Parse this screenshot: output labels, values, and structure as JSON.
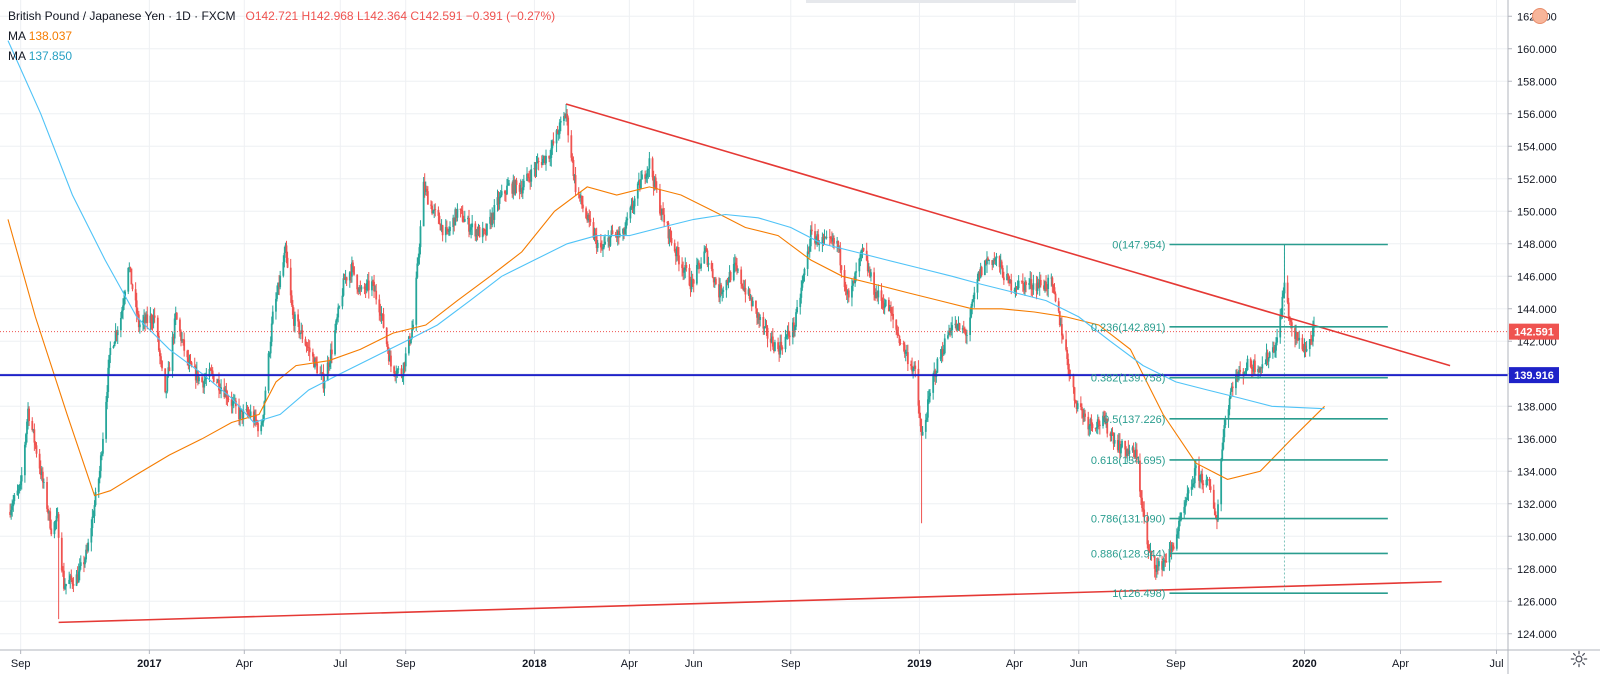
{
  "legend": {
    "symbol": "British Pound / Japanese Yen · 1D · FXCM",
    "open": "O142.721",
    "high": "H142.968",
    "low": "L142.364",
    "close": "C142.591",
    "change": "−0.391 (−0.27%)",
    "ma1_label": "MA",
    "ma1_value": "138.037",
    "ma2_label": "MA",
    "ma2_value": "137.850"
  },
  "colors": {
    "up": "#26a69a",
    "down": "#ef5350",
    "ma_orange": "#f57c00",
    "ma_blue": "#4fc3f7",
    "trend": "#e53935",
    "support": "#1e22c8",
    "fib": "#2a9d8f",
    "grid": "#eef0f3"
  },
  "chart_data": {
    "type": "candlestick",
    "title": "British Pound / Japanese Yen · 1D · FXCM",
    "ylim": [
      123,
      163
    ],
    "y_ticks": [
      "162.000",
      "160.000",
      "158.000",
      "156.000",
      "154.000",
      "152.000",
      "150.000",
      "148.000",
      "146.000",
      "144.000",
      "142.000",
      "140.000",
      "138.000",
      "136.000",
      "134.000",
      "132.000",
      "130.000",
      "128.000",
      "126.000",
      "124.000"
    ],
    "x_ticks": [
      "Sep",
      "2017",
      "Apr",
      "Jul",
      "Sep",
      "2018",
      "Apr",
      "Jun",
      "Sep",
      "2019",
      "Apr",
      "Jun",
      "Sep",
      "2020",
      "Apr",
      "Jul"
    ],
    "price_labels": [
      {
        "value": 142.591,
        "text": "142.591",
        "color": "#ef5350"
      },
      {
        "value": 139.916,
        "text": "139.916",
        "color": "#1e22c8"
      }
    ],
    "support_level": 139.916,
    "last_price": 142.591,
    "trendlines": [
      {
        "name": "descending-resistance",
        "from": {
          "date": "2018-01-31",
          "price": 156.6
        },
        "to": {
          "date": "2020-05-18",
          "price": 140.5
        }
      },
      {
        "name": "ascending-support",
        "from": {
          "date": "2016-10-07",
          "price": 124.7
        },
        "to": {
          "date": "2020-05-10",
          "price": 127.2
        }
      }
    ],
    "fibonacci": [
      {
        "label": "0(147.954)",
        "value": 147.954
      },
      {
        "label": "0.236(142.891)",
        "value": 142.891
      },
      {
        "label": "0.382(139.758)",
        "value": 139.758
      },
      {
        "label": "0.5(137.226)",
        "value": 137.226
      },
      {
        "label": "0.618(134.695)",
        "value": 134.695
      },
      {
        "label": "0.786(131.090)",
        "value": 131.09
      },
      {
        "label": "0.886(128.944)",
        "value": 128.944
      },
      {
        "label": "1(126.498)",
        "value": 126.498
      }
    ],
    "series": [
      {
        "name": "close (approx.)",
        "points": [
          [
            "2016-08-20",
            131.5
          ],
          [
            "2016-09-01",
            133.0
          ],
          [
            "2016-09-08",
            137.8
          ],
          [
            "2016-09-20",
            134.0
          ],
          [
            "2016-09-30",
            130.5
          ],
          [
            "2016-10-06",
            131.0
          ],
          [
            "2016-10-12",
            127.0
          ],
          [
            "2016-10-25",
            127.5
          ],
          [
            "2016-11-03",
            129.0
          ],
          [
            "2016-11-15",
            134.0
          ],
          [
            "2016-11-25",
            141.5
          ],
          [
            "2016-12-05",
            143.5
          ],
          [
            "2016-12-12",
            146.8
          ],
          [
            "2016-12-22",
            143.0
          ],
          [
            "2017-01-06",
            143.5
          ],
          [
            "2017-01-16",
            138.5
          ],
          [
            "2017-01-26",
            143.5
          ],
          [
            "2017-02-07",
            140.5
          ],
          [
            "2017-02-20",
            139.5
          ],
          [
            "2017-03-01",
            140.0
          ],
          [
            "2017-03-13",
            139.0
          ],
          [
            "2017-03-27",
            137.5
          ],
          [
            "2017-04-07",
            137.5
          ],
          [
            "2017-04-17",
            136.5
          ],
          [
            "2017-04-28",
            143.5
          ],
          [
            "2017-05-10",
            147.5
          ],
          [
            "2017-05-17",
            143.5
          ],
          [
            "2017-06-01",
            141.5
          ],
          [
            "2017-06-15",
            139.5
          ],
          [
            "2017-06-23",
            141.5
          ],
          [
            "2017-07-05",
            145.8
          ],
          [
            "2017-07-12",
            146.5
          ],
          [
            "2017-07-20",
            145.0
          ],
          [
            "2017-07-31",
            145.5
          ],
          [
            "2017-08-08",
            144.0
          ],
          [
            "2017-08-18",
            140.5
          ],
          [
            "2017-08-28",
            140.0
          ],
          [
            "2017-09-08",
            143.0
          ],
          [
            "2017-09-18",
            151.5
          ],
          [
            "2017-09-27",
            150.0
          ],
          [
            "2017-10-10",
            148.5
          ],
          [
            "2017-10-20",
            150.0
          ],
          [
            "2017-11-02",
            149.0
          ],
          [
            "2017-11-15",
            148.5
          ],
          [
            "2017-11-27",
            150.5
          ],
          [
            "2017-12-07",
            151.5
          ],
          [
            "2017-12-20",
            151.5
          ],
          [
            "2018-01-05",
            153.0
          ],
          [
            "2018-01-15",
            153.5
          ],
          [
            "2018-01-24",
            155.0
          ],
          [
            "2018-01-31",
            156.0
          ],
          [
            "2018-02-09",
            151.5
          ],
          [
            "2018-02-20",
            149.5
          ],
          [
            "2018-03-05",
            147.5
          ],
          [
            "2018-03-15",
            148.5
          ],
          [
            "2018-03-26",
            148.5
          ],
          [
            "2018-04-10",
            151.5
          ],
          [
            "2018-04-20",
            153.0
          ],
          [
            "2018-05-01",
            150.0
          ],
          [
            "2018-05-15",
            147.5
          ],
          [
            "2018-05-30",
            145.5
          ],
          [
            "2018-06-12",
            147.5
          ],
          [
            "2018-06-25",
            145.0
          ],
          [
            "2018-07-10",
            146.5
          ],
          [
            "2018-07-25",
            144.5
          ],
          [
            "2018-08-08",
            142.5
          ],
          [
            "2018-08-20",
            141.5
          ],
          [
            "2018-09-05",
            143.0
          ],
          [
            "2018-09-20",
            148.5
          ],
          [
            "2018-10-05",
            148.0
          ],
          [
            "2018-10-15",
            148.0
          ],
          [
            "2018-10-26",
            144.5
          ],
          [
            "2018-11-08",
            147.5
          ],
          [
            "2018-11-20",
            145.0
          ],
          [
            "2018-12-03",
            144.0
          ],
          [
            "2018-12-14",
            142.0
          ],
          [
            "2018-12-28",
            140.0
          ],
          [
            "2019-01-03",
            136.0
          ],
          [
            "2019-01-15",
            140.0
          ],
          [
            "2019-01-31",
            143.0
          ],
          [
            "2019-02-15",
            142.5
          ],
          [
            "2019-02-26",
            146.0
          ],
          [
            "2019-03-06",
            147.0
          ],
          [
            "2019-03-15",
            147.0
          ],
          [
            "2019-03-27",
            145.5
          ],
          [
            "2019-04-10",
            145.5
          ],
          [
            "2019-04-24",
            145.5
          ],
          [
            "2019-05-06",
            145.5
          ],
          [
            "2019-05-15",
            143.0
          ],
          [
            "2019-05-28",
            138.5
          ],
          [
            "2019-06-10",
            137.0
          ],
          [
            "2019-06-25",
            137.0
          ],
          [
            "2019-07-10",
            135.5
          ],
          [
            "2019-07-25",
            135.0
          ],
          [
            "2019-08-06",
            129.0
          ],
          [
            "2019-08-15",
            128.0
          ],
          [
            "2019-08-27",
            129.0
          ],
          [
            "2019-09-06",
            131.0
          ],
          [
            "2019-09-20",
            134.0
          ],
          [
            "2019-10-03",
            133.0
          ],
          [
            "2019-10-10",
            131.0
          ],
          [
            "2019-10-16",
            136.5
          ],
          [
            "2019-10-25",
            139.5
          ],
          [
            "2019-11-08",
            140.5
          ],
          [
            "2019-11-22",
            140.5
          ],
          [
            "2019-12-06",
            142.0
          ],
          [
            "2019-12-13",
            145.5
          ],
          [
            "2019-12-20",
            142.5
          ],
          [
            "2020-01-03",
            141.5
          ],
          [
            "2020-01-10",
            142.6
          ]
        ]
      },
      {
        "name": "MA",
        "value_label": "138.037",
        "points": [
          [
            "2016-08-20",
            149.5
          ],
          [
            "2016-09-15",
            143.5
          ],
          [
            "2016-10-15",
            137.5
          ],
          [
            "2016-11-10",
            132.5
          ],
          [
            "2016-11-25",
            132.8
          ],
          [
            "2016-12-20",
            133.8
          ],
          [
            "2017-01-20",
            135.0
          ],
          [
            "2017-02-20",
            136.0
          ],
          [
            "2017-03-20",
            137.0
          ],
          [
            "2017-04-15",
            137.5
          ],
          [
            "2017-05-01",
            139.5
          ],
          [
            "2017-05-20",
            140.5
          ],
          [
            "2017-06-20",
            140.8
          ],
          [
            "2017-07-20",
            141.5
          ],
          [
            "2017-08-20",
            142.5
          ],
          [
            "2017-09-20",
            143.0
          ],
          [
            "2017-10-20",
            144.5
          ],
          [
            "2017-11-20",
            146.0
          ],
          [
            "2017-12-20",
            147.5
          ],
          [
            "2018-01-20",
            150.0
          ],
          [
            "2018-02-20",
            151.5
          ],
          [
            "2018-03-20",
            151.0
          ],
          [
            "2018-04-20",
            151.5
          ],
          [
            "2018-05-20",
            151.0
          ],
          [
            "2018-06-20",
            150.0
          ],
          [
            "2018-07-20",
            149.0
          ],
          [
            "2018-08-20",
            148.5
          ],
          [
            "2018-09-20",
            147.0
          ],
          [
            "2018-10-20",
            146.0
          ],
          [
            "2018-11-20",
            145.5
          ],
          [
            "2018-12-20",
            145.0
          ],
          [
            "2019-01-20",
            144.5
          ],
          [
            "2019-02-20",
            144.0
          ],
          [
            "2019-03-20",
            144.0
          ],
          [
            "2019-04-20",
            143.8
          ],
          [
            "2019-05-20",
            143.5
          ],
          [
            "2019-06-20",
            143.0
          ],
          [
            "2019-07-20",
            141.5
          ],
          [
            "2019-08-20",
            137.5
          ],
          [
            "2019-09-20",
            134.5
          ],
          [
            "2019-10-20",
            133.5
          ],
          [
            "2019-11-20",
            134.0
          ],
          [
            "2019-12-20",
            136.0
          ],
          [
            "2020-01-20",
            138.0
          ]
        ]
      },
      {
        "name": "MA",
        "value_label": "137.850",
        "points": [
          [
            "2016-08-20",
            160.5
          ],
          [
            "2016-09-20",
            156.0
          ],
          [
            "2016-10-20",
            151.0
          ],
          [
            "2016-11-20",
            147.0
          ],
          [
            "2016-12-20",
            143.5
          ],
          [
            "2017-01-20",
            141.5
          ],
          [
            "2017-02-20",
            140.0
          ],
          [
            "2017-03-20",
            138.5
          ],
          [
            "2017-04-10",
            137.0
          ],
          [
            "2017-05-05",
            137.5
          ],
          [
            "2017-06-01",
            139.0
          ],
          [
            "2017-07-01",
            140.0
          ],
          [
            "2017-08-01",
            141.0
          ],
          [
            "2017-09-01",
            142.0
          ],
          [
            "2017-10-01",
            143.0
          ],
          [
            "2017-11-01",
            144.5
          ],
          [
            "2017-12-01",
            146.0
          ],
          [
            "2018-01-01",
            147.0
          ],
          [
            "2018-02-01",
            148.0
          ],
          [
            "2018-03-01",
            148.5
          ],
          [
            "2018-04-01",
            148.5
          ],
          [
            "2018-05-01",
            149.0
          ],
          [
            "2018-06-01",
            149.5
          ],
          [
            "2018-07-01",
            149.8
          ],
          [
            "2018-08-01",
            149.6
          ],
          [
            "2018-09-01",
            149.0
          ],
          [
            "2018-10-01",
            148.0
          ],
          [
            "2018-11-01",
            147.5
          ],
          [
            "2018-12-01",
            147.0
          ],
          [
            "2019-01-01",
            146.5
          ],
          [
            "2019-02-01",
            146.0
          ],
          [
            "2019-03-01",
            145.5
          ],
          [
            "2019-04-01",
            145.0
          ],
          [
            "2019-05-01",
            144.5
          ],
          [
            "2019-06-01",
            143.5
          ],
          [
            "2019-07-01",
            142.0
          ],
          [
            "2019-08-01",
            140.5
          ],
          [
            "2019-09-01",
            139.5
          ],
          [
            "2019-10-01",
            139.0
          ],
          [
            "2019-11-01",
            138.5
          ],
          [
            "2019-12-01",
            138.0
          ],
          [
            "2020-01-20",
            137.85
          ]
        ]
      }
    ]
  }
}
